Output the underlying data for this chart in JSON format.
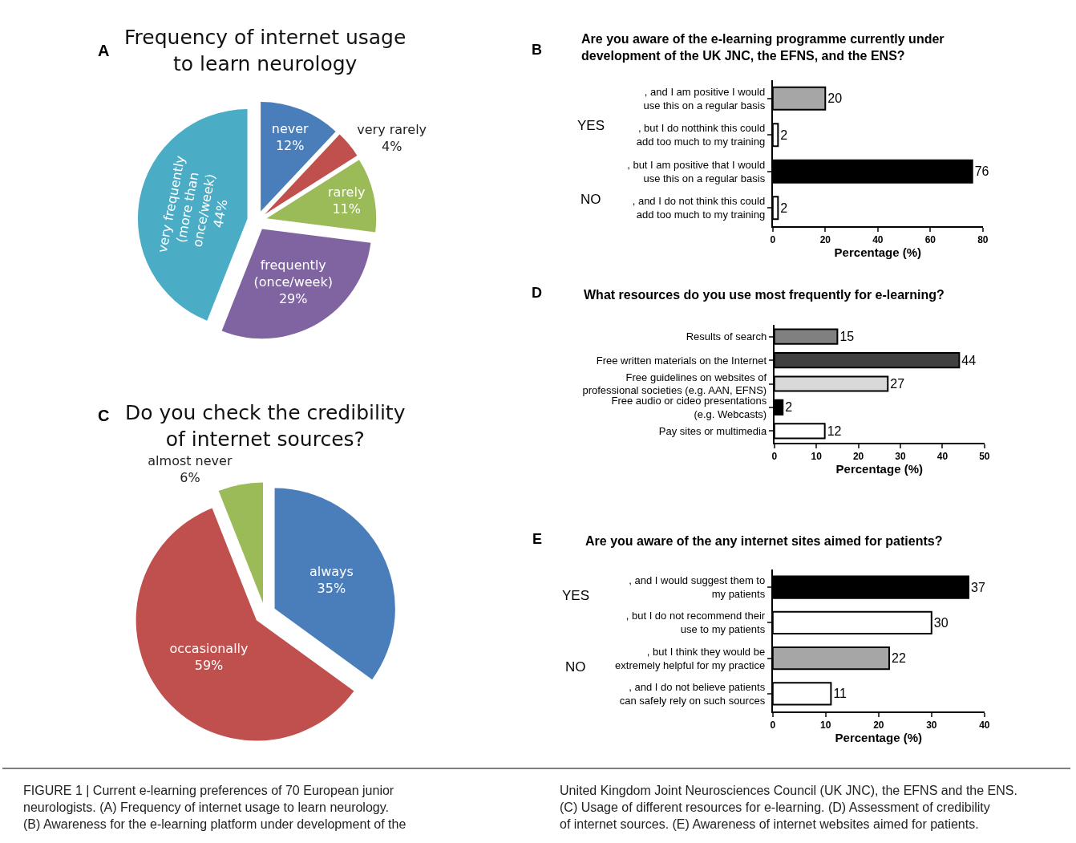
{
  "chart_data": [
    {
      "type": "pie",
      "title": "Frequency of internet usage\nto learn neurology",
      "annotations": [
        "A"
      ],
      "categories": [
        "never",
        "very rarely",
        "rarely",
        "frequently\n(once/week)",
        "very frequently\n(more than\nonce/week)"
      ],
      "values": [
        12,
        4,
        11,
        29,
        44
      ],
      "value_labels": [
        "12%",
        "4%",
        "11%",
        "29%",
        "44%"
      ],
      "colors": [
        "#4a7ebb",
        "#c0504d",
        "#9bbb59",
        "#8064a2",
        "#4bacc6"
      ]
    },
    {
      "type": "bar",
      "orientation": "horizontal",
      "title": "Are you aware of the e-learning programme currently under\ndevelopment of the UK JNC, the EFNS, and the ENS?",
      "annotations": [
        "B",
        "YES",
        "NO"
      ],
      "categories": [
        ", and I am positive I would\nuse this on a regular basis",
        ", but I do notthink this could\nadd too much to my training",
        ", but I am positive that I would\nuse this on a regular basis",
        ", and I do not think this could\nadd too much to my training"
      ],
      "values": [
        20,
        2,
        76,
        2
      ],
      "colors": [
        "#a6a6a6",
        "#ffffff",
        "#000000",
        "#ffffff"
      ],
      "xlim": [
        0,
        80
      ],
      "xticks": [
        0,
        20,
        40,
        60,
        80
      ],
      "xlabel": "Percentage (%)",
      "data_labels": true
    },
    {
      "type": "pie",
      "title": "Do you check the credibility\nof internet sources?",
      "annotations": [
        "C"
      ],
      "categories": [
        "always",
        "occasionally",
        "almost never"
      ],
      "values": [
        35,
        59,
        6
      ],
      "value_labels": [
        "35%",
        "59%",
        "6%"
      ],
      "colors": [
        "#4a7ebb",
        "#c0504d",
        "#9bbb59"
      ]
    },
    {
      "type": "bar",
      "orientation": "horizontal",
      "title": "What resources do you use most frequently for e-learning?",
      "annotations": [
        "D"
      ],
      "categories": [
        "Results of search",
        "Free written materials on the Internet",
        "Free guidelines on websites of\nprofessional societies (e.g. AAN, EFNS)",
        "Free audio or cideo presentations\n(e.g. Webcasts)",
        "Pay sites or multimedia"
      ],
      "values": [
        15,
        44,
        27,
        2,
        12
      ],
      "colors": [
        "#808080",
        "#404040",
        "#d9d9d9",
        "#000000",
        "#ffffff"
      ],
      "xlim": [
        0,
        50
      ],
      "xticks": [
        0,
        10,
        20,
        30,
        40,
        50
      ],
      "xlabel": "Percentage (%)",
      "data_labels": true
    },
    {
      "type": "bar",
      "orientation": "horizontal",
      "title": "Are you aware of the any internet sites aimed for patients?",
      "annotations": [
        "E",
        "YES",
        "NO"
      ],
      "categories": [
        ", and I would suggest them to\nmy patients",
        ", but I do not recommend their\nuse to my patients",
        ", but I think they would be\nextremely helpful for my practice",
        ", and I do not believe patients\ncan safely rely on such sources"
      ],
      "values": [
        37,
        30,
        22,
        11
      ],
      "colors": [
        "#000000",
        "#ffffff",
        "#a6a6a6",
        "#ffffff"
      ],
      "xlim": [
        0,
        40
      ],
      "xticks": [
        0,
        10,
        20,
        30,
        40
      ],
      "xlabel": "Percentage (%)",
      "data_labels": true
    },
    {
      "type": "other",
      "annotations": [
        "FIGURE 1 | Current e-learning preferences of 70 European junior\nneurologists. (A) Frequency of internet usage to learn neurology.\n(B) Awareness for the e-learning platform under development of the",
        "United Kingdom Joint Neurosciences Council (UK JNC), the EFNS and the ENS.\n(C) Usage of different resources for e-learning. (D) Assessment of credibility\nof internet sources. (E) Awareness of internet websites aimed for patients."
      ]
    }
  ]
}
